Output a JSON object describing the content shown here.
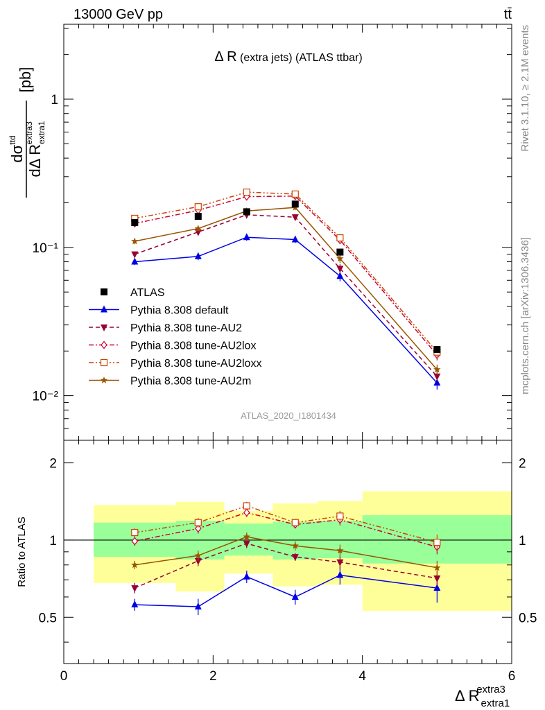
{
  "header": {
    "energy_label": "13000 GeV pp",
    "process_label": "tt̄",
    "rivet_label": "Rivet 3.1.10, ≥ 2.1M events",
    "mcplots_label": "mcplots.cern.ch [arXiv:1306.3436]",
    "analysis_id": "ATLAS_2020_I1801434"
  },
  "chart_data": [
    {
      "type": "line",
      "panel": "main",
      "title": "Δ R (extra jets) (ATLAS ttbar)",
      "ylabel": "dσ^ttd / dΔ R_extra1^extra3 [pb]",
      "yscale": "log",
      "xlim": [
        0,
        6
      ],
      "ylim": [
        0.005,
        3.2
      ],
      "ytick_labels": [
        "10⁻²",
        "10⁻¹",
        "1"
      ],
      "x": [
        0.95,
        1.8,
        2.45,
        3.1,
        3.7,
        5.0
      ],
      "data": {
        "name": "ATLAS",
        "values": [
          0.147,
          0.162,
          0.174,
          0.196,
          0.093,
          0.0205
        ]
      },
      "series": [
        {
          "name": "Pythia 8.308 default",
          "color": "#0000e6",
          "marker": "triangle-up",
          "dash": "solid",
          "values": [
            0.08,
            0.087,
            0.117,
            0.113,
            0.064,
            0.0122
          ],
          "errors": [
            0.004,
            0.005,
            0.006,
            0.006,
            0.005,
            0.0012
          ]
        },
        {
          "name": "Pythia 8.308 tune-AU2",
          "color": "#990033",
          "marker": "triangle-down",
          "dash": "dashed",
          "values": [
            0.09,
            0.127,
            0.166,
            0.16,
            0.072,
            0.0135
          ],
          "errors": [
            0.004,
            0.006,
            0.007,
            0.007,
            0.005,
            0.001
          ]
        },
        {
          "name": "Pythia 8.308 tune-AU2lox",
          "color": "#cc0033",
          "marker": "diamond-open",
          "dash": "dashdot",
          "values": [
            0.145,
            0.178,
            0.22,
            0.222,
            0.112,
            0.0188
          ],
          "errors": [
            0.006,
            0.008,
            0.009,
            0.009,
            0.007,
            0.0015
          ]
        },
        {
          "name": "Pythia 8.308 tune-AU2loxx",
          "color": "#cc4400",
          "marker": "square-open",
          "dash": "dashdotdot",
          "values": [
            0.157,
            0.188,
            0.236,
            0.229,
            0.116,
            0.0197
          ],
          "errors": [
            0.006,
            0.008,
            0.009,
            0.009,
            0.007,
            0.0015
          ]
        },
        {
          "name": "Pythia 8.308 tune-AU2m",
          "color": "#995500",
          "marker": "star",
          "dash": "solid",
          "values": [
            0.11,
            0.134,
            0.176,
            0.186,
            0.084,
            0.015
          ],
          "errors": [
            0.005,
            0.006,
            0.007,
            0.008,
            0.006,
            0.0012
          ]
        }
      ]
    },
    {
      "type": "line",
      "panel": "ratio",
      "ylabel": "Ratio to ATLAS",
      "xlabel": "Δ R_extra1^extra3",
      "xlim": [
        0,
        6
      ],
      "ylim": [
        0.33,
        2.45
      ],
      "x_ticks": [
        0,
        2,
        4,
        6
      ],
      "y_ticks": [
        0.5,
        1,
        2
      ],
      "bins": [
        {
          "lo": 0.4,
          "hi": 1.5,
          "stat": [
            0.86,
            1.17
          ],
          "total": [
            0.68,
            1.37
          ]
        },
        {
          "lo": 1.5,
          "hi": 2.15,
          "stat": [
            0.84,
            1.19
          ],
          "total": [
            0.63,
            1.41
          ]
        },
        {
          "lo": 2.15,
          "hi": 2.8,
          "stat": [
            0.87,
            1.16
          ],
          "total": [
            0.74,
            1.3
          ]
        },
        {
          "lo": 2.8,
          "hi": 3.4,
          "stat": [
            0.84,
            1.18
          ],
          "total": [
            0.66,
            1.39
          ]
        },
        {
          "lo": 3.4,
          "hi": 4.0,
          "stat": [
            0.85,
            1.19
          ],
          "total": [
            0.67,
            1.42
          ]
        },
        {
          "lo": 4.0,
          "hi": 6.0,
          "stat": [
            0.81,
            1.25
          ],
          "total": [
            0.53,
            1.55
          ]
        }
      ],
      "series": [
        {
          "name": "Pythia 8.308 default",
          "values": [
            0.56,
            0.55,
            0.72,
            0.6,
            0.73,
            0.65
          ],
          "errors": [
            0.03,
            0.04,
            0.04,
            0.04,
            0.06,
            0.08
          ]
        },
        {
          "name": "Pythia 8.308 tune-AU2",
          "values": [
            0.65,
            0.83,
            0.97,
            0.86,
            0.82,
            0.71
          ],
          "errors": [
            0.03,
            0.04,
            0.04,
            0.03,
            0.05,
            0.05
          ]
        },
        {
          "name": "Pythia 8.308 tune-AU2lox",
          "values": [
            0.99,
            1.11,
            1.28,
            1.15,
            1.2,
            0.94
          ],
          "errors": [
            0.04,
            0.05,
            0.05,
            0.04,
            0.06,
            0.06
          ]
        },
        {
          "name": "Pythia 8.308 tune-AU2loxx",
          "values": [
            1.07,
            1.17,
            1.36,
            1.17,
            1.24,
            0.98
          ],
          "errors": [
            0.04,
            0.05,
            0.05,
            0.04,
            0.06,
            0.07
          ]
        },
        {
          "name": "Pythia 8.308 tune-AU2m",
          "values": [
            0.8,
            0.87,
            1.03,
            0.95,
            0.91,
            0.78
          ],
          "errors": [
            0.03,
            0.04,
            0.04,
            0.04,
            0.05,
            0.05
          ]
        }
      ]
    }
  ]
}
